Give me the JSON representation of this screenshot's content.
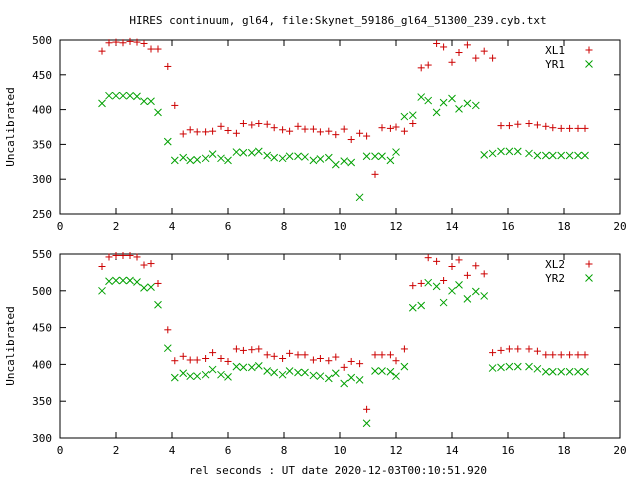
{
  "chart_data": [
    {
      "type": "scatter",
      "title": "HIRES continuum, gl64, file:Skynet_59186_gl64_51300_239.cyb.txt",
      "xlabel": "",
      "ylabel": "Uncalibrated",
      "xlim": [
        0,
        20
      ],
      "ylim": [
        250,
        500
      ],
      "xticks": [
        "0",
        "2",
        "4",
        "6",
        "8",
        "10",
        "12",
        "14",
        "16",
        "18",
        "20"
      ],
      "yticks": [
        "250",
        "300",
        "350",
        "400",
        "450",
        "500"
      ],
      "legend": "top-right",
      "grid": false,
      "series": [
        {
          "name": "XL1",
          "marker": "+",
          "color": "#cc0000",
          "x": [
            1.5,
            1.75,
            2.0,
            2.25,
            2.5,
            2.75,
            3.0,
            3.25,
            3.5,
            3.85,
            4.1,
            4.4,
            4.65,
            4.9,
            5.2,
            5.45,
            5.75,
            6.0,
            6.3,
            6.55,
            6.85,
            7.1,
            7.4,
            7.65,
            7.95,
            8.2,
            8.5,
            8.75,
            9.05,
            9.3,
            9.6,
            9.85,
            10.15,
            10.4,
            10.7,
            10.95,
            11.25,
            11.5,
            11.8,
            12.0,
            12.3,
            12.6,
            12.9,
            13.15,
            13.45,
            13.7,
            14.0,
            14.25,
            14.55,
            14.85,
            15.15,
            15.45,
            15.75,
            16.05,
            16.35,
            16.75,
            17.05,
            17.35,
            17.6,
            17.9,
            18.2,
            18.5,
            18.75
          ],
          "values": [
            484,
            496,
            497,
            496,
            498,
            497,
            495,
            487,
            487,
            462,
            406,
            365,
            371,
            368,
            368,
            369,
            376,
            370,
            366,
            380,
            378,
            380,
            379,
            374,
            371,
            369,
            376,
            372,
            372,
            368,
            369,
            364,
            372,
            357,
            366,
            362,
            307,
            374,
            373,
            375,
            369,
            380,
            460,
            464,
            495,
            490,
            468,
            482,
            493,
            474,
            484,
            474,
            377,
            377,
            379,
            380,
            378,
            376,
            374,
            373,
            373,
            373,
            373
          ]
        },
        {
          "name": "YR1",
          "marker": "x",
          "color": "#00a000",
          "x": [
            1.5,
            1.75,
            2.0,
            2.25,
            2.5,
            2.75,
            3.0,
            3.25,
            3.5,
            3.85,
            4.1,
            4.4,
            4.65,
            4.9,
            5.2,
            5.45,
            5.75,
            6.0,
            6.3,
            6.55,
            6.85,
            7.1,
            7.4,
            7.65,
            7.95,
            8.2,
            8.5,
            8.75,
            9.05,
            9.3,
            9.6,
            9.85,
            10.15,
            10.4,
            10.7,
            10.95,
            11.25,
            11.5,
            11.8,
            12.0,
            12.3,
            12.6,
            12.9,
            13.15,
            13.45,
            13.7,
            14.0,
            14.25,
            14.55,
            14.85,
            15.15,
            15.45,
            15.75,
            16.05,
            16.35,
            16.75,
            17.05,
            17.35,
            17.6,
            17.9,
            18.2,
            18.5,
            18.75
          ],
          "values": [
            409,
            420,
            420,
            420,
            420,
            419,
            412,
            412,
            396,
            354,
            327,
            331,
            327,
            328,
            330,
            336,
            330,
            327,
            339,
            338,
            338,
            340,
            334,
            331,
            330,
            333,
            333,
            332,
            327,
            329,
            331,
            321,
            326,
            324,
            274,
            333,
            333,
            333,
            327,
            339,
            390,
            392,
            418,
            413,
            396,
            410,
            416,
            401,
            409,
            406,
            335,
            337,
            340,
            340,
            340,
            337,
            334,
            334,
            334,
            334,
            334,
            334,
            334
          ]
        }
      ]
    },
    {
      "type": "scatter",
      "title": "",
      "xlabel": "rel seconds : UT date 2020-12-03T00:10:51.920",
      "ylabel": "Uncalibrated",
      "xlim": [
        0,
        20
      ],
      "ylim": [
        300,
        550
      ],
      "xticks": [
        "0",
        "2",
        "4",
        "6",
        "8",
        "10",
        "12",
        "14",
        "16",
        "18",
        "20"
      ],
      "yticks": [
        "300",
        "350",
        "400",
        "450",
        "500",
        "550"
      ],
      "legend": "top-right",
      "grid": false,
      "series": [
        {
          "name": "XL2",
          "marker": "+",
          "color": "#cc0000",
          "x": [
            1.5,
            1.75,
            2.0,
            2.25,
            2.5,
            2.75,
            3.0,
            3.25,
            3.5,
            3.85,
            4.1,
            4.4,
            4.65,
            4.9,
            5.2,
            5.45,
            5.75,
            6.0,
            6.3,
            6.55,
            6.85,
            7.1,
            7.4,
            7.65,
            7.95,
            8.2,
            8.5,
            8.75,
            9.05,
            9.3,
            9.6,
            9.85,
            10.15,
            10.4,
            10.7,
            10.95,
            11.25,
            11.5,
            11.8,
            12.0,
            12.3,
            12.6,
            12.9,
            13.15,
            13.45,
            13.7,
            14.0,
            14.25,
            14.55,
            14.85,
            15.15,
            15.45,
            15.75,
            16.05,
            16.35,
            16.75,
            17.05,
            17.35,
            17.6,
            17.9,
            18.2,
            18.5,
            18.75
          ],
          "values": [
            533,
            546,
            548,
            548,
            548,
            546,
            535,
            537,
            510,
            447,
            405,
            411,
            406,
            406,
            408,
            416,
            408,
            404,
            421,
            419,
            420,
            421,
            413,
            411,
            408,
            415,
            413,
            413,
            406,
            408,
            405,
            410,
            396,
            404,
            401,
            339,
            413,
            413,
            413,
            405,
            421,
            507,
            510,
            545,
            540,
            514,
            533,
            542,
            521,
            534,
            523,
            416,
            419,
            421,
            421,
            421,
            418,
            413,
            413,
            413,
            413,
            413,
            413
          ]
        },
        {
          "name": "YR2",
          "marker": "x",
          "color": "#00a000",
          "x": [
            1.5,
            1.75,
            2.0,
            2.25,
            2.5,
            2.75,
            3.0,
            3.25,
            3.5,
            3.85,
            4.1,
            4.4,
            4.65,
            4.9,
            5.2,
            5.45,
            5.75,
            6.0,
            6.3,
            6.55,
            6.85,
            7.1,
            7.4,
            7.65,
            7.95,
            8.2,
            8.5,
            8.75,
            9.05,
            9.3,
            9.6,
            9.85,
            10.15,
            10.4,
            10.7,
            10.95,
            11.25,
            11.5,
            11.8,
            12.0,
            12.3,
            12.6,
            12.9,
            13.15,
            13.45,
            13.7,
            14.0,
            14.25,
            14.55,
            14.85,
            15.15,
            15.45,
            15.75,
            16.05,
            16.35,
            16.75,
            17.05,
            17.35,
            17.6,
            17.9,
            18.2,
            18.5,
            18.75
          ],
          "values": [
            500,
            513,
            514,
            514,
            514,
            512,
            504,
            505,
            481,
            422,
            382,
            388,
            384,
            384,
            386,
            393,
            386,
            383,
            397,
            396,
            396,
            398,
            391,
            389,
            386,
            391,
            389,
            389,
            385,
            384,
            381,
            388,
            374,
            382,
            379,
            320,
            391,
            391,
            390,
            384,
            397,
            477,
            480,
            511,
            506,
            484,
            500,
            508,
            489,
            499,
            493,
            395,
            396,
            397,
            397,
            397,
            394,
            390,
            390,
            390,
            390,
            390,
            390
          ]
        }
      ]
    }
  ]
}
